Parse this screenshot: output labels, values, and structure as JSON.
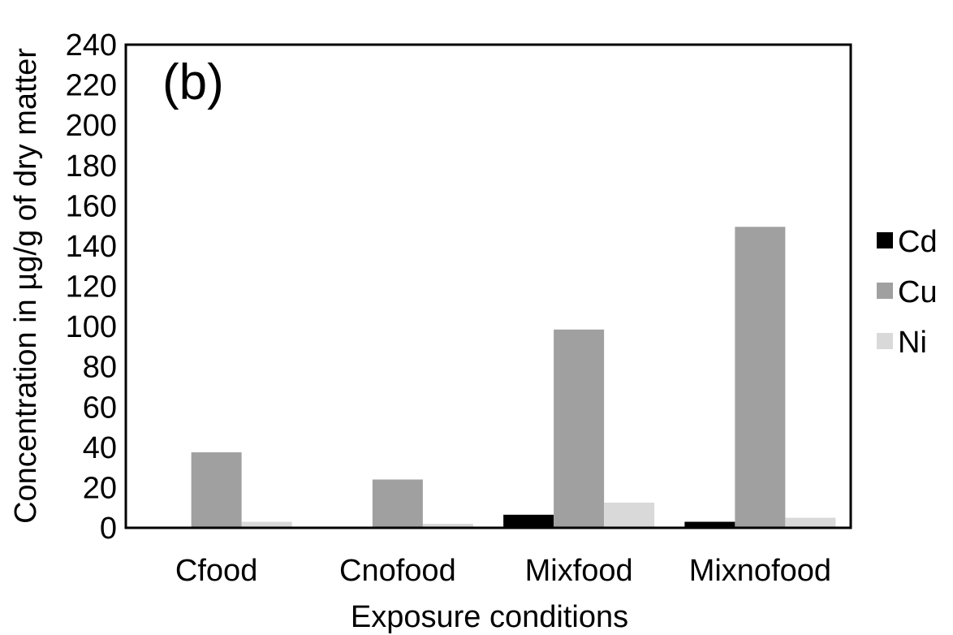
{
  "chart_data": {
    "type": "bar",
    "panel_label": "(b)",
    "xlabel": "Exposure conditions",
    "ylabel": "Concentration in µg/g of dry matter",
    "ylim": [
      0,
      240
    ],
    "yticks": [
      0,
      20,
      40,
      60,
      80,
      100,
      120,
      140,
      160,
      180,
      200,
      220,
      240
    ],
    "grid": false,
    "legend_position": "right",
    "categories": [
      "Cfood",
      "Cnofood",
      "Mixfood",
      "Mixnofood"
    ],
    "series": [
      {
        "name": "Cd",
        "color": "#000000",
        "values": [
          0,
          0,
          6.5,
          3
        ]
      },
      {
        "name": "Cu",
        "color": "#a0a0a0",
        "values": [
          37.5,
          24,
          98.5,
          149.5
        ]
      },
      {
        "name": "Ni",
        "color": "#d9d9d9",
        "values": [
          3,
          2,
          12.5,
          5
        ]
      }
    ]
  }
}
